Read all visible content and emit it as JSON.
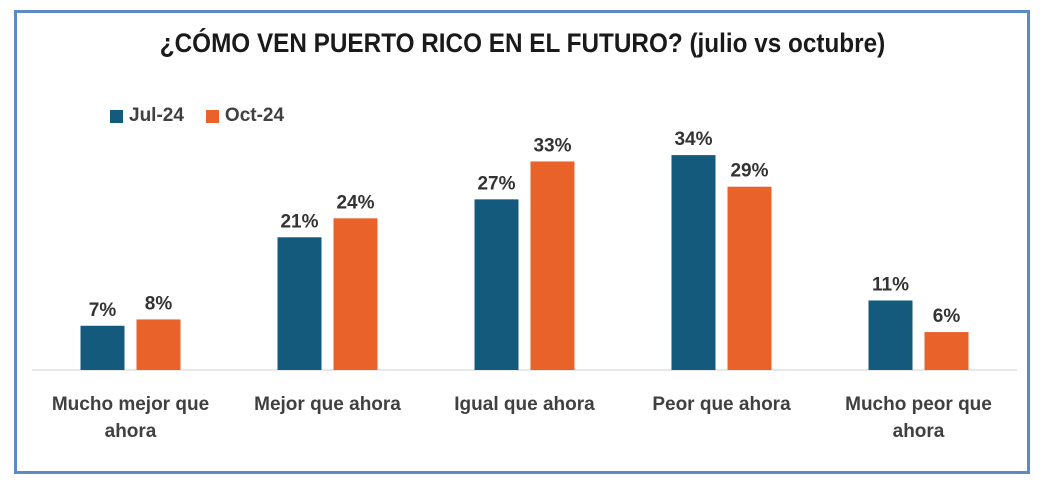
{
  "chart_data": {
    "type": "bar",
    "title": "¿CÓMO VEN PUERTO RICO EN EL FUTURO? (julio vs octubre)",
    "categories": [
      [
        "Mucho mejor que",
        "ahora"
      ],
      [
        "Mejor que ahora"
      ],
      [
        "Igual que ahora"
      ],
      [
        "Peor que ahora"
      ],
      [
        "Mucho peor que",
        "ahora"
      ]
    ],
    "series": [
      {
        "name": "Jul-24",
        "color": "#145a7c",
        "values": [
          7,
          21,
          27,
          34,
          11
        ]
      },
      {
        "name": "Oct-24",
        "color": "#e8622a",
        "values": [
          8,
          24,
          33,
          29,
          6
        ]
      }
    ],
    "value_suffix": "%",
    "ylim": [
      0,
      36
    ],
    "grid": false,
    "legend": "top-left",
    "frame_color": "#5b8ac4"
  }
}
